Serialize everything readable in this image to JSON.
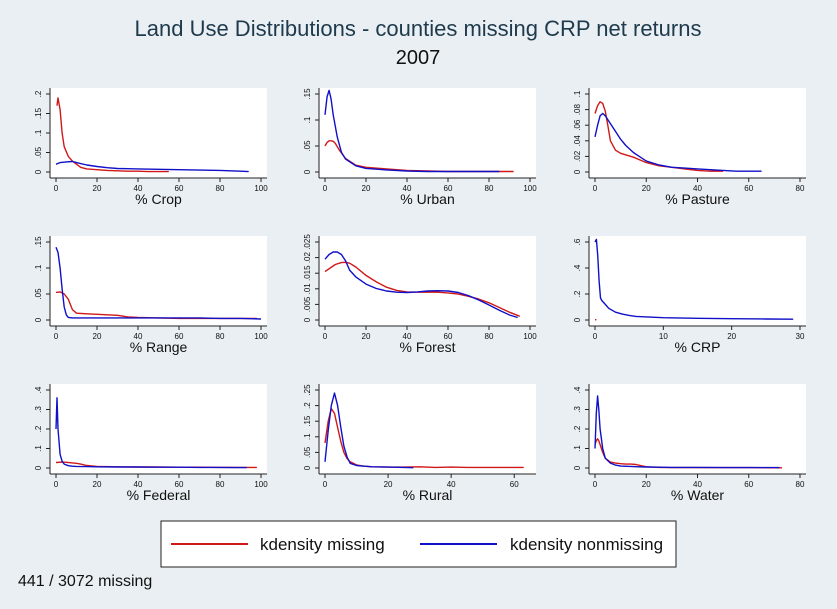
{
  "title": "Land Use Distributions - counties missing CRP net returns",
  "subtitle": "2007",
  "footnote": "441 / 3072 missing",
  "colors": {
    "missing": "#d01818",
    "nonmissing": "#1010c8",
    "panel_bg": "#ffffff",
    "page_bg": "#e9eff3"
  },
  "legend": {
    "items": [
      {
        "label": "kdensity missing",
        "series": "missing"
      },
      {
        "label": "kdensity nonmissing",
        "series": "nonmissing"
      }
    ]
  },
  "chart_data": [
    {
      "type": "line",
      "xlabel": "% Crop",
      "xlim": [
        0,
        100
      ],
      "ylim": [
        0,
        0.2
      ],
      "xticks": [
        0,
        20,
        40,
        60,
        80,
        100
      ],
      "yticks": [
        0,
        0.05,
        0.1,
        0.15,
        0.2
      ],
      "ytick_labels": [
        "0",
        ".05",
        ".1",
        ".15",
        ".2"
      ],
      "series": [
        {
          "key": "missing",
          "x": [
            0.5,
            1,
            2,
            3,
            4,
            6,
            8,
            10,
            12,
            15,
            20,
            25,
            30,
            35,
            40,
            45,
            50,
            55
          ],
          "y": [
            0.17,
            0.19,
            0.16,
            0.1,
            0.065,
            0.04,
            0.028,
            0.02,
            0.012,
            0.008,
            0.006,
            0.004,
            0.003,
            0.002,
            0.002,
            0.001,
            0.001,
            0.001
          ]
        },
        {
          "key": "nonmissing",
          "x": [
            0,
            2,
            5,
            8,
            10,
            15,
            20,
            25,
            30,
            40,
            50,
            60,
            70,
            80,
            90,
            94
          ],
          "y": [
            0.02,
            0.024,
            0.026,
            0.027,
            0.024,
            0.018,
            0.014,
            0.011,
            0.009,
            0.008,
            0.007,
            0.006,
            0.005,
            0.004,
            0.002,
            0.001
          ]
        }
      ]
    },
    {
      "type": "line",
      "xlabel": "% Urban",
      "xlim": [
        0,
        100
      ],
      "ylim": [
        0,
        0.15
      ],
      "xticks": [
        0,
        20,
        40,
        60,
        80,
        100
      ],
      "yticks": [
        0,
        0.05,
        0.1,
        0.15
      ],
      "ytick_labels": [
        "0",
        ".05",
        ".1",
        ".15"
      ],
      "series": [
        {
          "key": "missing",
          "x": [
            0,
            1,
            2,
            3,
            4,
            5,
            7,
            10,
            15,
            20,
            30,
            40,
            50,
            60,
            70,
            80,
            90,
            92
          ],
          "y": [
            0.05,
            0.057,
            0.06,
            0.06,
            0.059,
            0.055,
            0.042,
            0.026,
            0.013,
            0.009,
            0.006,
            0.003,
            0.002,
            0.001,
            0.001,
            0.001,
            0.001,
            0.001
          ]
        },
        {
          "key": "nonmissing",
          "x": [
            0,
            1,
            2,
            3,
            4,
            6,
            8,
            10,
            15,
            20,
            30,
            40,
            50,
            60,
            70,
            80,
            85
          ],
          "y": [
            0.11,
            0.145,
            0.157,
            0.14,
            0.11,
            0.067,
            0.038,
            0.025,
            0.012,
            0.007,
            0.004,
            0.002,
            0.001,
            0.001,
            0.001,
            0.001,
            0.001
          ]
        }
      ]
    },
    {
      "type": "line",
      "xlabel": "% Pasture",
      "xlim": [
        0,
        80
      ],
      "ylim": [
        0,
        0.1
      ],
      "xticks": [
        0,
        20,
        40,
        60,
        80
      ],
      "yticks": [
        0,
        0.02,
        0.04,
        0.06,
        0.08,
        0.1
      ],
      "ytick_labels": [
        "0",
        ".02",
        ".04",
        ".06",
        ".08",
        ".1"
      ],
      "series": [
        {
          "key": "missing",
          "x": [
            0,
            1,
            2,
            3,
            4,
            5,
            6,
            8,
            10,
            15,
            20,
            25,
            30,
            35,
            40,
            45,
            50
          ],
          "y": [
            0.075,
            0.085,
            0.09,
            0.088,
            0.078,
            0.06,
            0.04,
            0.028,
            0.024,
            0.019,
            0.012,
            0.008,
            0.006,
            0.004,
            0.002,
            0.001,
            0.001
          ]
        },
        {
          "key": "nonmissing",
          "x": [
            0,
            1,
            2,
            3,
            4,
            6,
            8,
            10,
            12,
            15,
            20,
            25,
            30,
            35,
            40,
            45,
            50,
            55,
            60,
            65
          ],
          "y": [
            0.045,
            0.06,
            0.072,
            0.075,
            0.072,
            0.062,
            0.052,
            0.042,
            0.034,
            0.025,
            0.014,
            0.009,
            0.006,
            0.005,
            0.004,
            0.003,
            0.002,
            0.001,
            0.001,
            0.001
          ]
        }
      ]
    },
    {
      "type": "line",
      "xlabel": "% Range",
      "xlim": [
        0,
        100
      ],
      "ylim": [
        0,
        0.15
      ],
      "xticks": [
        0,
        20,
        40,
        60,
        80,
        100
      ],
      "yticks": [
        0,
        0.05,
        0.1,
        0.15
      ],
      "ytick_labels": [
        "0",
        ".05",
        ".1",
        ".15"
      ],
      "series": [
        {
          "key": "missing",
          "x": [
            0,
            2,
            4,
            6,
            8,
            10,
            15,
            20,
            25,
            30,
            35,
            40,
            50,
            60,
            70,
            80,
            90,
            98
          ],
          "y": [
            0.053,
            0.054,
            0.05,
            0.04,
            0.02,
            0.013,
            0.012,
            0.011,
            0.01,
            0.009,
            0.006,
            0.005,
            0.004,
            0.003,
            0.003,
            0.003,
            0.003,
            0.003
          ]
        },
        {
          "key": "nonmissing",
          "x": [
            0,
            1,
            2,
            3,
            4,
            5,
            6,
            8,
            10,
            15,
            20,
            30,
            40,
            50,
            60,
            70,
            80,
            90,
            100
          ],
          "y": [
            0.14,
            0.13,
            0.1,
            0.06,
            0.025,
            0.01,
            0.005,
            0.004,
            0.004,
            0.004,
            0.004,
            0.004,
            0.004,
            0.004,
            0.004,
            0.004,
            0.003,
            0.003,
            0.002
          ]
        }
      ]
    },
    {
      "type": "line",
      "xlabel": "% Forest",
      "xlim": [
        0,
        100
      ],
      "ylim": [
        0,
        0.025
      ],
      "xticks": [
        0,
        20,
        40,
        60,
        80,
        100
      ],
      "yticks": [
        0,
        0.005,
        0.01,
        0.015,
        0.02,
        0.025
      ],
      "ytick_labels": [
        "0",
        ".005",
        ".01",
        ".015",
        ".02",
        ".025"
      ],
      "series": [
        {
          "key": "missing",
          "x": [
            0,
            5,
            8,
            10,
            12,
            15,
            20,
            25,
            30,
            35,
            40,
            45,
            50,
            55,
            60,
            65,
            70,
            75,
            80,
            85,
            90,
            95
          ],
          "y": [
            0.0155,
            0.0178,
            0.0184,
            0.0185,
            0.0182,
            0.017,
            0.0143,
            0.0122,
            0.0105,
            0.0095,
            0.009,
            0.0089,
            0.0089,
            0.0089,
            0.0087,
            0.0083,
            0.0076,
            0.0067,
            0.0055,
            0.004,
            0.0025,
            0.0012
          ]
        },
        {
          "key": "nonmissing",
          "x": [
            0,
            2,
            4,
            6,
            8,
            10,
            12,
            15,
            20,
            25,
            30,
            35,
            40,
            45,
            50,
            55,
            60,
            65,
            70,
            75,
            80,
            85,
            90,
            94
          ],
          "y": [
            0.0195,
            0.021,
            0.0218,
            0.0218,
            0.021,
            0.019,
            0.016,
            0.0138,
            0.0115,
            0.0101,
            0.0093,
            0.0089,
            0.0088,
            0.009,
            0.0093,
            0.0094,
            0.0093,
            0.0088,
            0.0078,
            0.0064,
            0.0048,
            0.0031,
            0.0016,
            0.0008
          ]
        }
      ]
    },
    {
      "type": "line",
      "xlabel": "% CRP",
      "xlim": [
        0,
        30
      ],
      "ylim": [
        0,
        0.6
      ],
      "xticks": [
        0,
        10,
        20,
        30
      ],
      "yticks": [
        0,
        0.2,
        0.4,
        0.6
      ],
      "ytick_labels": [
        "0",
        ".2",
        ".4",
        ".6"
      ],
      "series": [
        {
          "key": "missing",
          "x": [
            0,
            0.2
          ],
          "y": [
            0.002,
            0.002
          ]
        },
        {
          "key": "nonmissing",
          "x": [
            0,
            0.2,
            0.4,
            0.6,
            0.8,
            1,
            1.5,
            2,
            3,
            4,
            5,
            6,
            8,
            10,
            15,
            20,
            25,
            29
          ],
          "y": [
            0.6,
            0.62,
            0.5,
            0.3,
            0.17,
            0.15,
            0.12,
            0.09,
            0.06,
            0.045,
            0.035,
            0.028,
            0.022,
            0.018,
            0.013,
            0.01,
            0.008,
            0.006
          ]
        }
      ]
    },
    {
      "type": "line",
      "xlabel": "% Federal",
      "xlim": [
        0,
        100
      ],
      "ylim": [
        0,
        0.4
      ],
      "xticks": [
        0,
        20,
        40,
        60,
        80,
        100
      ],
      "yticks": [
        0,
        0.1,
        0.2,
        0.3,
        0.4
      ],
      "ytick_labels": [
        "0",
        ".1",
        ".2",
        ".3",
        ".4"
      ],
      "series": [
        {
          "key": "missing",
          "x": [
            0,
            3,
            5,
            8,
            10,
            12,
            15,
            20,
            30,
            40,
            50,
            60,
            70,
            80,
            90,
            98
          ],
          "y": [
            0.028,
            0.03,
            0.029,
            0.026,
            0.024,
            0.02,
            0.013,
            0.008,
            0.006,
            0.005,
            0.005,
            0.004,
            0.004,
            0.003,
            0.003,
            0.003
          ]
        },
        {
          "key": "nonmissing",
          "x": [
            0,
            0.5,
            1,
            2,
            3,
            4,
            6,
            8,
            10,
            15,
            20,
            30,
            40,
            50,
            60,
            70,
            80,
            90,
            93
          ],
          "y": [
            0.2,
            0.36,
            0.2,
            0.07,
            0.035,
            0.02,
            0.012,
            0.009,
            0.008,
            0.007,
            0.006,
            0.005,
            0.005,
            0.004,
            0.004,
            0.003,
            0.003,
            0.002,
            0.002
          ]
        }
      ]
    },
    {
      "type": "line",
      "xlabel": "% Rural",
      "xlim": [
        0,
        65
      ],
      "ylim": [
        0,
        0.25
      ],
      "xticks": [
        0,
        20,
        40,
        60
      ],
      "yticks": [
        0,
        0.05,
        0.1,
        0.15,
        0.2,
        0.25
      ],
      "ytick_labels": [
        "0",
        ".05",
        ".1",
        ".15",
        ".2",
        ".25"
      ],
      "series": [
        {
          "key": "missing",
          "x": [
            0,
            1,
            2,
            3,
            4,
            5,
            6,
            7,
            8,
            10,
            12,
            15,
            20,
            25,
            30,
            35,
            40,
            45,
            50,
            55,
            60,
            63
          ],
          "y": [
            0.08,
            0.15,
            0.19,
            0.175,
            0.13,
            0.085,
            0.05,
            0.03,
            0.02,
            0.01,
            0.006,
            0.004,
            0.003,
            0.003,
            0.004,
            0.002,
            0.003,
            0.002,
            0.002,
            0.002,
            0.002,
            0.002
          ]
        },
        {
          "key": "nonmissing",
          "x": [
            0,
            1,
            2,
            3,
            4,
            5,
            6,
            7,
            8,
            10,
            12,
            15,
            20,
            25,
            28
          ],
          "y": [
            0.02,
            0.12,
            0.2,
            0.24,
            0.2,
            0.13,
            0.07,
            0.035,
            0.015,
            0.008,
            0.006,
            0.004,
            0.003,
            0.002,
            0.001
          ]
        }
      ]
    },
    {
      "type": "line",
      "xlabel": "% Water",
      "xlim": [
        0,
        80
      ],
      "ylim": [
        0,
        0.4
      ],
      "xticks": [
        0,
        20,
        40,
        60,
        80
      ],
      "yticks": [
        0,
        0.1,
        0.2,
        0.3,
        0.4
      ],
      "ytick_labels": [
        "0",
        ".1",
        ".2",
        ".3",
        ".4"
      ],
      "series": [
        {
          "key": "missing",
          "x": [
            0,
            0.5,
            1,
            1.5,
            2,
            3,
            4,
            6,
            8,
            10,
            12,
            14,
            16,
            18,
            20,
            25,
            30,
            40,
            50,
            60,
            70,
            73
          ],
          "y": [
            0.12,
            0.14,
            0.15,
            0.14,
            0.12,
            0.08,
            0.05,
            0.03,
            0.025,
            0.022,
            0.02,
            0.02,
            0.018,
            0.012,
            0.006,
            0.003,
            0.002,
            0.002,
            0.002,
            0.002,
            0.001,
            0.001
          ]
        },
        {
          "key": "nonmissing",
          "x": [
            0,
            0.5,
            1,
            1.5,
            2,
            3,
            4,
            6,
            8,
            10,
            15,
            20,
            25,
            30,
            40,
            50,
            60,
            70,
            72
          ],
          "y": [
            0.1,
            0.28,
            0.37,
            0.3,
            0.2,
            0.1,
            0.05,
            0.025,
            0.015,
            0.01,
            0.007,
            0.005,
            0.004,
            0.003,
            0.003,
            0.002,
            0.002,
            0.002,
            0.002
          ]
        }
      ]
    }
  ]
}
